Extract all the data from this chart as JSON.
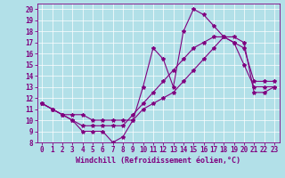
{
  "xlabel": "Windchill (Refroidissement éolien,°C)",
  "background_color": "#b2e0e8",
  "line_color": "#800080",
  "xlim": [
    -0.5,
    23.5
  ],
  "ylim": [
    8,
    20.5
  ],
  "yticks": [
    8,
    9,
    10,
    11,
    12,
    13,
    14,
    15,
    16,
    17,
    18,
    19,
    20
  ],
  "xticks": [
    0,
    1,
    2,
    3,
    4,
    5,
    6,
    7,
    8,
    9,
    10,
    11,
    12,
    13,
    14,
    15,
    16,
    17,
    18,
    19,
    20,
    21,
    22,
    23
  ],
  "series1_x": [
    0,
    1,
    2,
    3,
    4,
    5,
    6,
    7,
    8,
    9,
    10,
    11,
    12,
    13,
    14,
    15,
    16,
    17,
    18,
    19,
    20,
    21,
    22,
    23
  ],
  "series1_y": [
    11.5,
    11.0,
    10.5,
    10.0,
    9.0,
    9.0,
    9.0,
    8.0,
    8.5,
    10.0,
    13.0,
    16.5,
    15.5,
    13.0,
    18.0,
    20.0,
    19.5,
    18.5,
    17.5,
    17.0,
    15.0,
    13.0,
    13.0,
    13.0
  ],
  "series2_x": [
    0,
    1,
    2,
    3,
    4,
    5,
    6,
    7,
    8,
    9,
    10,
    11,
    12,
    13,
    14,
    15,
    16,
    17,
    18,
    19,
    20,
    21,
    22,
    23
  ],
  "series2_y": [
    11.5,
    11.0,
    10.5,
    10.5,
    10.5,
    10.0,
    10.0,
    10.0,
    10.0,
    10.0,
    11.0,
    11.5,
    12.0,
    12.5,
    13.5,
    14.5,
    15.5,
    16.5,
    17.5,
    17.5,
    17.0,
    12.5,
    12.5,
    13.0
  ],
  "series3_x": [
    0,
    1,
    2,
    3,
    4,
    5,
    6,
    7,
    8,
    9,
    10,
    11,
    12,
    13,
    14,
    15,
    16,
    17,
    18,
    19,
    20,
    21,
    22,
    23
  ],
  "series3_y": [
    11.5,
    11.0,
    10.5,
    10.0,
    9.5,
    9.5,
    9.5,
    9.5,
    9.5,
    10.5,
    11.5,
    12.5,
    13.5,
    14.5,
    15.5,
    16.5,
    17.0,
    17.5,
    17.5,
    17.0,
    16.5,
    13.5,
    13.5,
    13.5
  ],
  "tick_fontsize": 5.5,
  "xlabel_fontsize": 6.0,
  "marker_size": 3.0,
  "line_width": 0.8
}
